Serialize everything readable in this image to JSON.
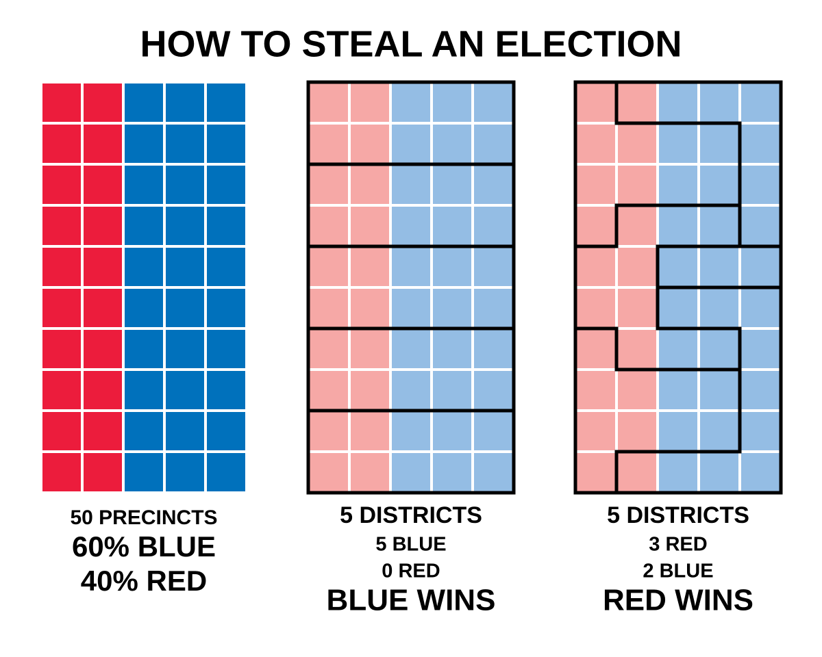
{
  "title": "HOW TO STEAL AN ELECTION",
  "panels": [
    {
      "lines": [
        "50 PRECINCTS",
        "60% BLUE",
        "40% RED"
      ]
    },
    {
      "lines": [
        "5 DISTRICTS",
        "5 BLUE",
        "0 RED",
        "BLUE WINS"
      ]
    },
    {
      "lines": [
        "5 DISTRICTS",
        "3 RED",
        "2 BLUE",
        "RED WINS"
      ]
    }
  ]
}
